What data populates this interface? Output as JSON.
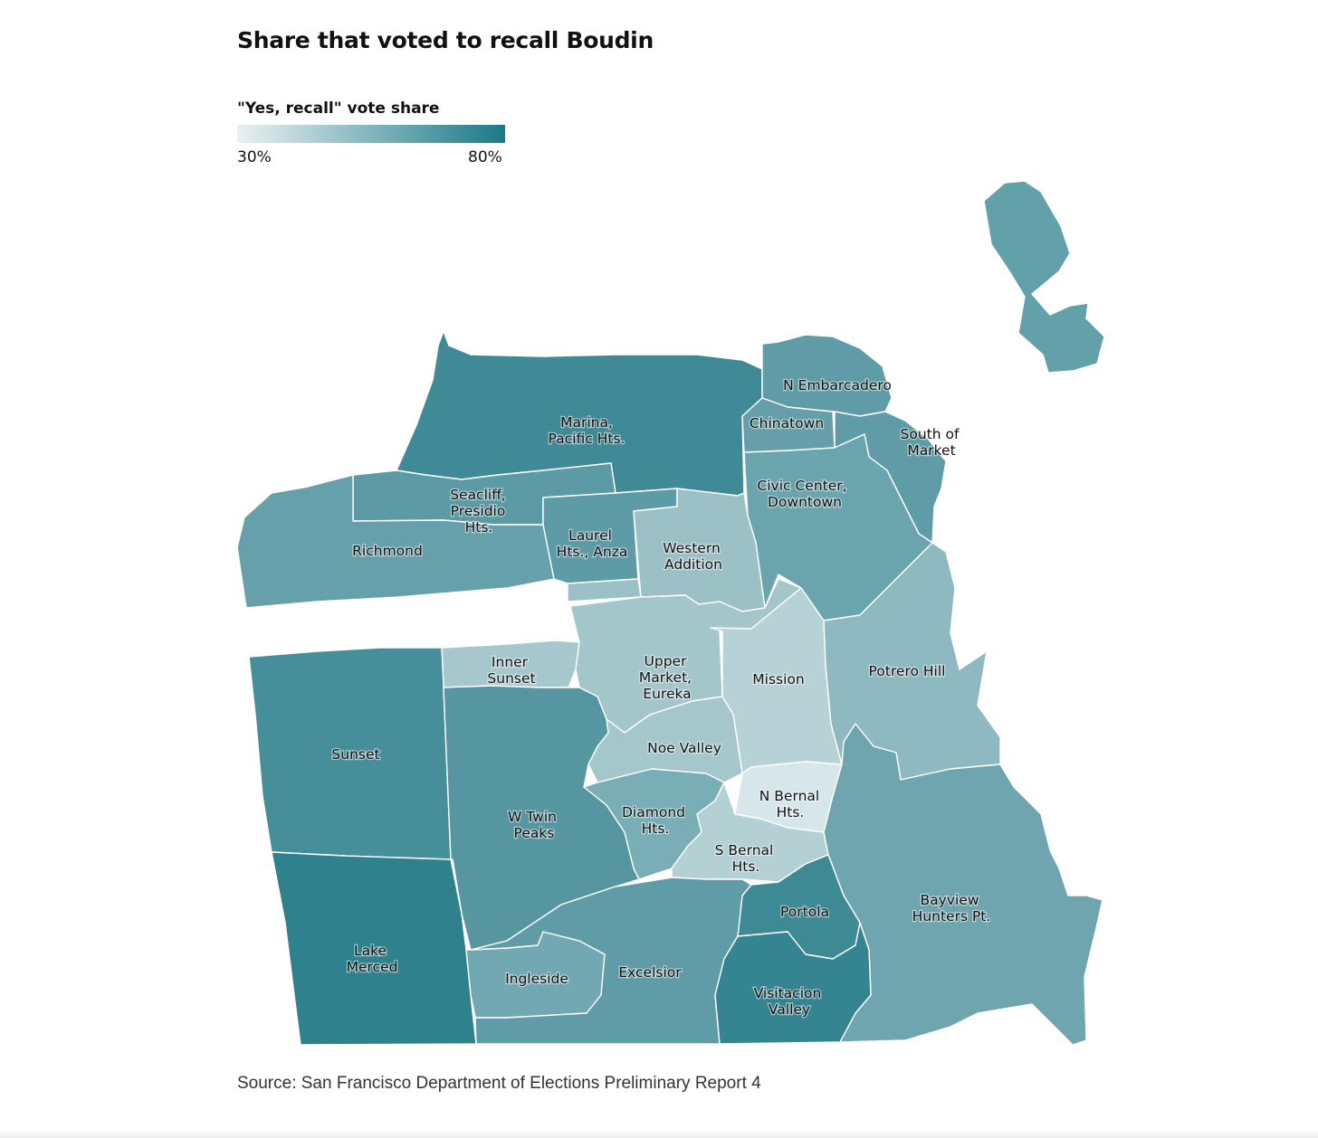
{
  "title": "Share that voted to recall Boudin",
  "legend": {
    "title": "\"Yes, recall\" vote share",
    "min_label": "30%",
    "max_label": "80%",
    "color_low": "#e9f1f3",
    "color_high": "#1a7a87"
  },
  "source": "Source: San Francisco Department of Elections Preliminary Report 4",
  "neighborhoods": [
    {
      "id": "marina",
      "lines": [
        "Marina,",
        "Pacific Hts."
      ],
      "color": "#3f8a96"
    },
    {
      "id": "n-embarcadero",
      "lines": [
        "N Embarcadero"
      ],
      "color": "#5f9ca7"
    },
    {
      "id": "chinatown",
      "lines": [
        "Chinatown"
      ],
      "color": "#669fa9"
    },
    {
      "id": "south-of-market",
      "lines": [
        "South of",
        "Market"
      ],
      "color": "#5f9ca7"
    },
    {
      "id": "civic-center",
      "lines": [
        "Civic Center,",
        "Downtown"
      ],
      "color": "#6aa4ad"
    },
    {
      "id": "seacliff",
      "lines": [
        "Seacliff,",
        "Presidio",
        "Hts."
      ],
      "color": "#5c9ba6"
    },
    {
      "id": "richmond",
      "lines": [
        "Richmond"
      ],
      "color": "#66a1ab"
    },
    {
      "id": "laurel-hts",
      "lines": [
        "Laurel",
        "Hts., Anza"
      ],
      "color": "#5d9ca7"
    },
    {
      "id": "western-addition",
      "lines": [
        "Western",
        "Addition"
      ],
      "color": "#9bc1c7"
    },
    {
      "id": "inner-sunset",
      "lines": [
        "Inner",
        "Sunset"
      ],
      "color": "#a6c8cd"
    },
    {
      "id": "upper-market",
      "lines": [
        "Upper",
        "Market,",
        "Eureka"
      ],
      "color": "#a3c6cb"
    },
    {
      "id": "mission",
      "lines": [
        "Mission"
      ],
      "color": "#b7d2d6"
    },
    {
      "id": "potrero-hill",
      "lines": [
        "Potrero Hill"
      ],
      "color": "#8fb9c0"
    },
    {
      "id": "sunset",
      "lines": [
        "Sunset"
      ],
      "color": "#468f9a"
    },
    {
      "id": "noe-valley",
      "lines": [
        "Noe Valley"
      ],
      "color": "#a4c7cc"
    },
    {
      "id": "w-twin-peaks",
      "lines": [
        "W Twin",
        "Peaks"
      ],
      "color": "#5596a1"
    },
    {
      "id": "diamond-hts",
      "lines": [
        "Diamond",
        "Hts."
      ],
      "color": "#7aaeb6"
    },
    {
      "id": "n-bernal",
      "lines": [
        "N Bernal",
        "Hts."
      ],
      "color": "#d6e6e9"
    },
    {
      "id": "s-bernal",
      "lines": [
        "S Bernal",
        "Hts."
      ],
      "color": "#b3d0d4"
    },
    {
      "id": "bayview",
      "lines": [
        "Bayview",
        "Hunters Pt."
      ],
      "color": "#6ea5ae"
    },
    {
      "id": "portola",
      "lines": [
        "Portola"
      ],
      "color": "#3d8994"
    },
    {
      "id": "lake-merced",
      "lines": [
        "Lake",
        "Merced"
      ],
      "color": "#2f818d"
    },
    {
      "id": "ingleside",
      "lines": [
        "Ingleside"
      ],
      "color": "#72a8b1"
    },
    {
      "id": "excelsior",
      "lines": [
        "Excelsior"
      ],
      "color": "#5f9ca7"
    },
    {
      "id": "visitacion",
      "lines": [
        "Visitacion",
        "Valley"
      ],
      "color": "#358491"
    }
  ]
}
